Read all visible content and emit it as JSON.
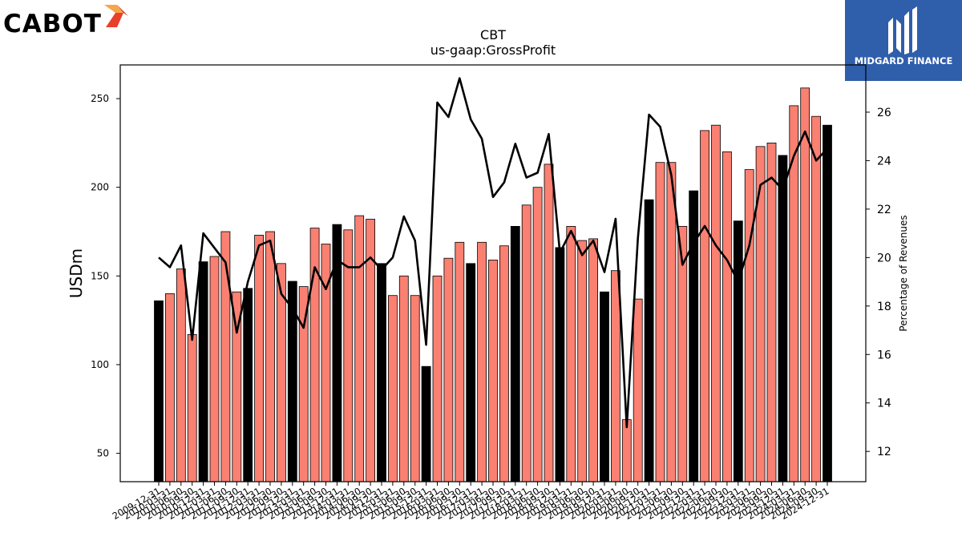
{
  "logos": {
    "left_text": "CABOT",
    "right_text": "MIDGARD FINANCE"
  },
  "colors": {
    "bar_highlight": "#000000",
    "bar_default": "#fa8072",
    "line": "#000000"
  },
  "chart_data": {
    "type": "bar",
    "title": "CBT",
    "subtitle": "us-gaap:GrossProfit",
    "ylabel": "USDm",
    "y2label": "Percentage of Revenues",
    "ylim": [
      34,
      269
    ],
    "y2lim": [
      10.75,
      27.95
    ],
    "yticks": [
      50,
      100,
      150,
      200,
      250
    ],
    "y2ticks": [
      12,
      14,
      16,
      18,
      20,
      22,
      24,
      26
    ],
    "grid": false,
    "xticklabels_note": "every period date is drawn; labels overlap as in the original",
    "categories": [
      "2009-12-31",
      "2010-03-31",
      "2010-06-30",
      "2010-09-30",
      "2010-12-31",
      "2011-03-31",
      "2011-06-30",
      "2011-09-30",
      "2011-12-31",
      "2012-03-31",
      "2012-06-30",
      "2012-09-30",
      "2012-12-31",
      "2013-03-31",
      "2013-06-30",
      "2013-09-30",
      "2013-12-31",
      "2014-03-31",
      "2014-06-30",
      "2014-09-30",
      "2014-12-31",
      "2015-03-31",
      "2015-06-30",
      "2015-09-30",
      "2015-12-31",
      "2016-03-31",
      "2016-06-30",
      "2016-09-30",
      "2016-12-31",
      "2017-03-31",
      "2017-06-30",
      "2017-09-30",
      "2017-12-31",
      "2018-03-31",
      "2018-06-30",
      "2018-09-30",
      "2018-12-31",
      "2019-03-31",
      "2019-06-30",
      "2019-09-30",
      "2019-12-31",
      "2020-03-31",
      "2020-06-30",
      "2020-09-30",
      "2020-12-31",
      "2021-03-31",
      "2021-06-30",
      "2021-09-30",
      "2021-12-31",
      "2022-03-31",
      "2022-06-30",
      "2022-09-30",
      "2022-12-31",
      "2023-03-31",
      "2023-06-30",
      "2023-09-30",
      "2023-12-31",
      "2024-03-31",
      "2024-06-30",
      "2024-09-30",
      "2024-12-31"
    ],
    "series": [
      {
        "type": "bar",
        "values": [
          136,
          140,
          154,
          117,
          158,
          161,
          175,
          141,
          143,
          173,
          175,
          157,
          147,
          144,
          177,
          168,
          179,
          176,
          184,
          182,
          157,
          139,
          150,
          139,
          99,
          150,
          160,
          169,
          157,
          169,
          159,
          167,
          178,
          190,
          200,
          213,
          166,
          178,
          170,
          171,
          141,
          153,
          69,
          137,
          193,
          214,
          214,
          178,
          198,
          232,
          235,
          220,
          181,
          210,
          223,
          225,
          218,
          246,
          256,
          240,
          235
        ],
        "highlight": [
          true,
          false,
          false,
          false,
          true,
          false,
          false,
          false,
          true,
          false,
          false,
          false,
          true,
          false,
          false,
          false,
          true,
          false,
          false,
          false,
          true,
          false,
          false,
          false,
          true,
          false,
          false,
          false,
          true,
          false,
          false,
          false,
          true,
          false,
          false,
          false,
          true,
          false,
          false,
          false,
          true,
          false,
          false,
          false,
          true,
          false,
          false,
          false,
          true,
          false,
          false,
          false,
          true,
          false,
          false,
          false,
          true,
          false,
          false,
          false,
          true
        ]
      },
      {
        "type": "line",
        "axis": "right",
        "values": [
          20.0,
          19.6,
          20.5,
          16.6,
          21.0,
          20.4,
          19.8,
          16.9,
          19.0,
          20.5,
          20.7,
          18.5,
          17.9,
          17.1,
          19.6,
          18.7,
          19.9,
          19.6,
          19.6,
          20.0,
          19.5,
          20.0,
          21.7,
          20.7,
          16.4,
          26.4,
          25.8,
          27.4,
          25.7,
          24.9,
          22.5,
          23.1,
          24.7,
          23.3,
          23.5,
          25.1,
          20.2,
          21.1,
          20.1,
          20.7,
          19.4,
          21.6,
          13.0,
          20.8,
          25.9,
          25.4,
          23.4,
          19.7,
          20.6,
          21.3,
          20.5,
          19.9,
          19.0,
          20.5,
          23.0,
          23.3,
          22.8,
          24.2,
          25.2,
          24.0,
          24.5
        ]
      }
    ]
  }
}
